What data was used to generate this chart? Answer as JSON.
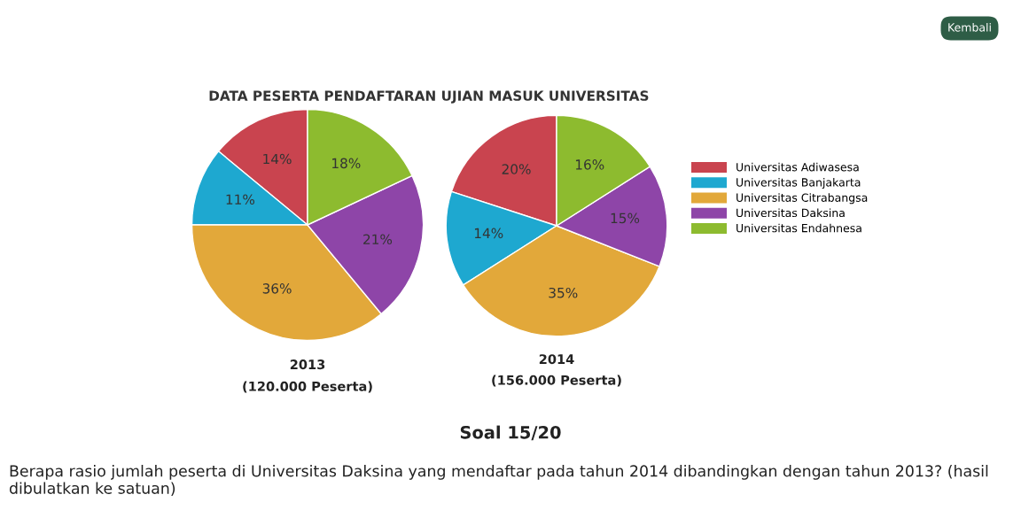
{
  "chart_data": [
    {
      "type": "pie",
      "title": "DATA PESERTA PENDAFTARAN UJIAN MASUK UNIVERSITAS",
      "xlabel": "2013",
      "annotations": [
        "(120.000 Peserta)"
      ],
      "legend": "right",
      "categories": [
        "Universitas Adiwasesa",
        "Universitas Banjakarta",
        "Universitas Citrabangsa",
        "Universitas Daksina",
        "Universitas Endahnesa"
      ],
      "values": [
        14,
        11,
        36,
        21,
        18
      ],
      "value_labels": [
        "14%",
        "11%",
        "36%",
        "21%",
        "18%"
      ],
      "colors": [
        "#c9444f",
        "#1ea8d0",
        "#e2a83a",
        "#8e45a8",
        "#8dbb2f"
      ]
    },
    {
      "type": "pie",
      "xlabel": "2014",
      "annotations": [
        "(156.000 Peserta)"
      ],
      "categories": [
        null,
        null,
        null,
        null,
        null
      ],
      "values": [
        20,
        14,
        35,
        15,
        16
      ],
      "value_labels": [
        "20%",
        "14%",
        "35%",
        "15%",
        "16%"
      ],
      "colors": [
        "#c9444f",
        "#1ea8d0",
        "#e2a83a",
        "#8e45a8",
        "#8dbb2f"
      ]
    },
    {
      "type": "other",
      "title": "Soal 15/20",
      "annotations": [
        "Berapa rasio jumlah peserta di Universitas Daksina yang mendaftar pada tahun 2014 dibandingkan dengan tahun 2013? (hasil dibulatkan ke satuan)",
        "Kembali"
      ]
    }
  ]
}
